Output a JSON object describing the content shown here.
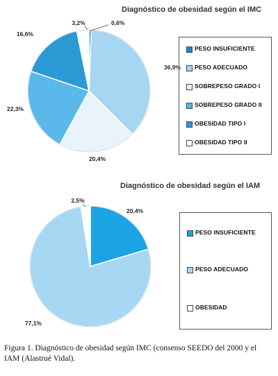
{
  "chart_data": [
    {
      "type": "pie",
      "title": "Diagnóstico de obesidad según el IMC",
      "categories": [
        "PESO INSUFICIENTE",
        "PESO ADECUADO",
        "SOBREPESO GRADO I",
        "SOBREPESO GRADO II",
        "OBESIDAD TIPO I",
        "OBESIDAD TIPO II"
      ],
      "values": [
        0.6,
        36.9,
        20.4,
        22.3,
        16.6,
        3.2
      ],
      "value_labels": [
        "0,6%",
        "36,9%",
        "20,4%",
        "22,3%",
        "16,6%",
        "3,2%"
      ],
      "colors": [
        "#1e88c8",
        "#a6d6f2",
        "#e8f3fb",
        "#5bb8ea",
        "#2a9ad4",
        "#ffffff"
      ],
      "legend": "right"
    },
    {
      "type": "pie",
      "title": "Diagnóstico de obesidad según el IAM",
      "categories": [
        "PESO INSUFICIENTE",
        "PESO ADECUADO",
        "OBESIDAD"
      ],
      "values": [
        20.4,
        77.1,
        2.5
      ],
      "value_labels": [
        "20,4%",
        "77,1%",
        "2,5%"
      ],
      "colors": [
        "#1ba3e3",
        "#a6d8f4",
        "#ffffff"
      ],
      "legend": "right"
    }
  ],
  "caption": "Figura 1. Diagnóstico de obesidad según IMC (consenso SEEDO del 2000 y el IAM (Alastrué Vidal)."
}
